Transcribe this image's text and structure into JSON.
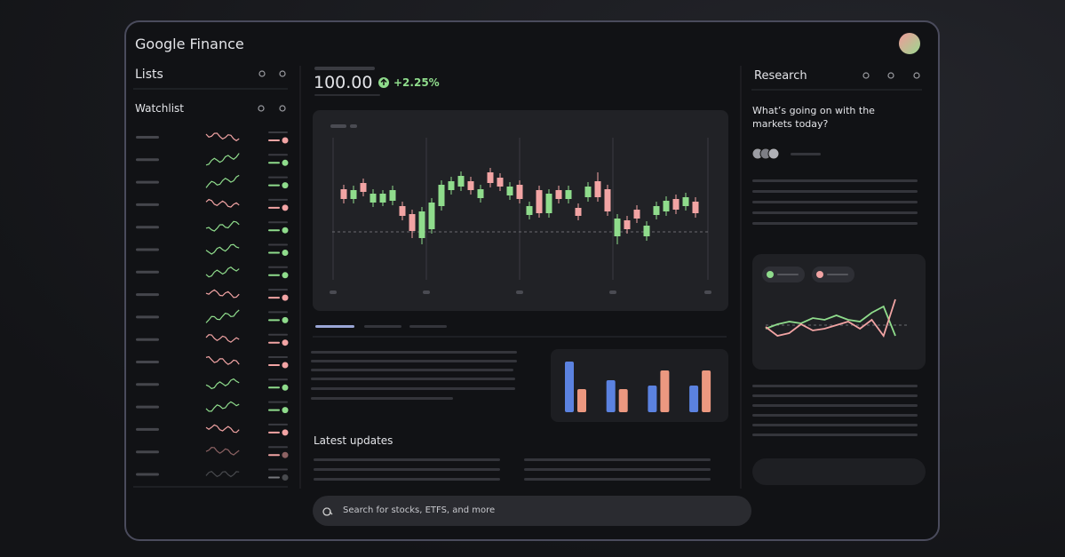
{
  "header": {
    "title": "Google Finance"
  },
  "sidebar": {
    "lists_label": "Lists",
    "watchlist_label": "Watchlist"
  },
  "quote": {
    "price": "100.00",
    "change": "+2.25%"
  },
  "price_chart": {
    "up_color": "#8fdc8c",
    "down_color": "#f2a4a4",
    "candles": [
      [
        87,
        76,
        92,
        71
      ],
      [
        76,
        86,
        91,
        71
      ],
      [
        94,
        84,
        99,
        79
      ],
      [
        72,
        82,
        87,
        67
      ],
      [
        72,
        82,
        86,
        68
      ],
      [
        74,
        86,
        91,
        69
      ],
      [
        68,
        57,
        73,
        52
      ],
      [
        59,
        40,
        64,
        32
      ],
      [
        32,
        62,
        67,
        25
      ],
      [
        42,
        72,
        77,
        37
      ],
      [
        68,
        92,
        97,
        63
      ],
      [
        86,
        96,
        101,
        81
      ],
      [
        90,
        102,
        107,
        85
      ],
      [
        96,
        86,
        101,
        81
      ],
      [
        77,
        87,
        92,
        72
      ],
      [
        106,
        94,
        111,
        89
      ],
      [
        100,
        90,
        105,
        85
      ],
      [
        80,
        90,
        95,
        75
      ],
      [
        92,
        76,
        97,
        71
      ],
      [
        58,
        68,
        73,
        53
      ],
      [
        86,
        60,
        91,
        55
      ],
      [
        60,
        82,
        87,
        55
      ],
      [
        86,
        76,
        91,
        71
      ],
      [
        76,
        86,
        91,
        71
      ],
      [
        66,
        57,
        71,
        52
      ],
      [
        78,
        90,
        95,
        73
      ],
      [
        96,
        78,
        106,
        73
      ],
      [
        87,
        62,
        92,
        57
      ],
      [
        34,
        54,
        59,
        25
      ],
      [
        52,
        42,
        57,
        37
      ],
      [
        64,
        54,
        69,
        49
      ],
      [
        34,
        46,
        51,
        29
      ],
      [
        58,
        68,
        73,
        53
      ],
      [
        62,
        74,
        79,
        57
      ],
      [
        76,
        64,
        81,
        59
      ],
      [
        68,
        78,
        83,
        63
      ],
      [
        73,
        60,
        78,
        55
      ]
    ]
  },
  "bar_chart": {
    "series": [
      {
        "color": "#5b82e0",
        "values": [
          57,
          36,
          30,
          30
        ]
      },
      {
        "color": "#ec9880",
        "values": [
          26,
          26,
          47,
          47
        ]
      }
    ]
  },
  "updates": {
    "title": "Latest updates"
  },
  "research": {
    "title": "Research",
    "prompt": "What’s going on with the markets today?",
    "chart": {
      "series": [
        {
          "color": "#8fdc8c",
          "values": [
            30,
            35,
            38,
            36,
            42,
            40,
            45,
            40,
            38,
            48,
            55,
            22
          ]
        },
        {
          "color": "#f2a4a4",
          "values": [
            32,
            22,
            25,
            35,
            28,
            30,
            34,
            38,
            30,
            40,
            22,
            63
          ]
        }
      ]
    }
  },
  "search": {
    "placeholder": "Search for stocks, ETFS, and more"
  }
}
